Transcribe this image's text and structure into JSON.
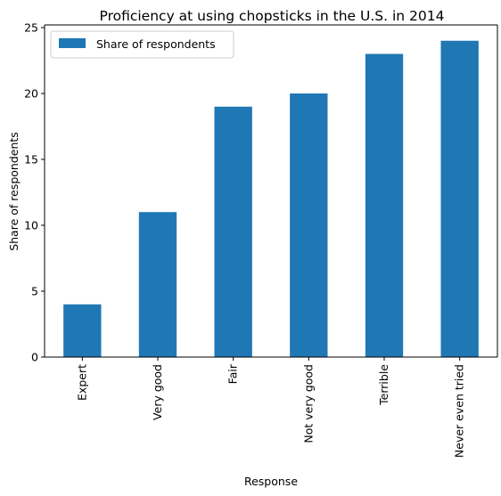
{
  "chart_data": {
    "type": "bar",
    "title": "Proficiency at using chopsticks in the U.S. in 2014",
    "xlabel": "Response",
    "ylabel": "Share of respondents",
    "categories": [
      "Expert",
      "Very good",
      "Fair",
      "Not very good",
      "Terrible",
      "Never even tried"
    ],
    "series": [
      {
        "name": "Share of respondents",
        "values": [
          4,
          11,
          19,
          20,
          23,
          24
        ],
        "color": "#1f77b4"
      }
    ],
    "ylim": [
      0,
      25.2
    ],
    "yticks": [
      0,
      5,
      10,
      15,
      20,
      25
    ],
    "grid": false,
    "legend_position": "top-left"
  }
}
